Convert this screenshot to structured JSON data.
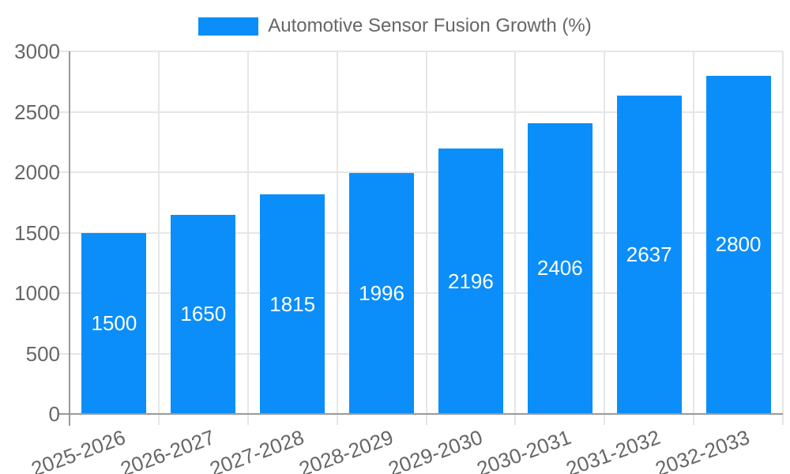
{
  "legend": {
    "label": "Automotive Sensor Fusion Growth (%)"
  },
  "chart_data": {
    "type": "bar",
    "categories": [
      "2025-2026",
      "2026-2027",
      "2027-2028",
      "2028-2029",
      "2029-2030",
      "2030-2031",
      "2031-2032",
      "2032-2033"
    ],
    "values": [
      1500,
      1650,
      1815,
      1996,
      2196,
      2406,
      2637,
      2800
    ],
    "series_name": "Automotive Sensor Fusion Growth (%)",
    "yticks": [
      0,
      500,
      1000,
      1500,
      2000,
      2500,
      3000
    ],
    "ylim": [
      0,
      3000
    ],
    "grid": true,
    "legend_position": "top-center",
    "bar_value_labels": [
      "1500",
      "1650",
      "1815",
      "1996",
      "2196",
      "2406",
      "2637",
      "2800"
    ],
    "colors": {
      "bar": "#0b8ef9",
      "bar_label": "#ffffff",
      "tick_text": "#666666",
      "legend_text": "#666666",
      "gridline": "#e6e6e6",
      "axis": "#999999",
      "background": "#ffffff"
    }
  }
}
